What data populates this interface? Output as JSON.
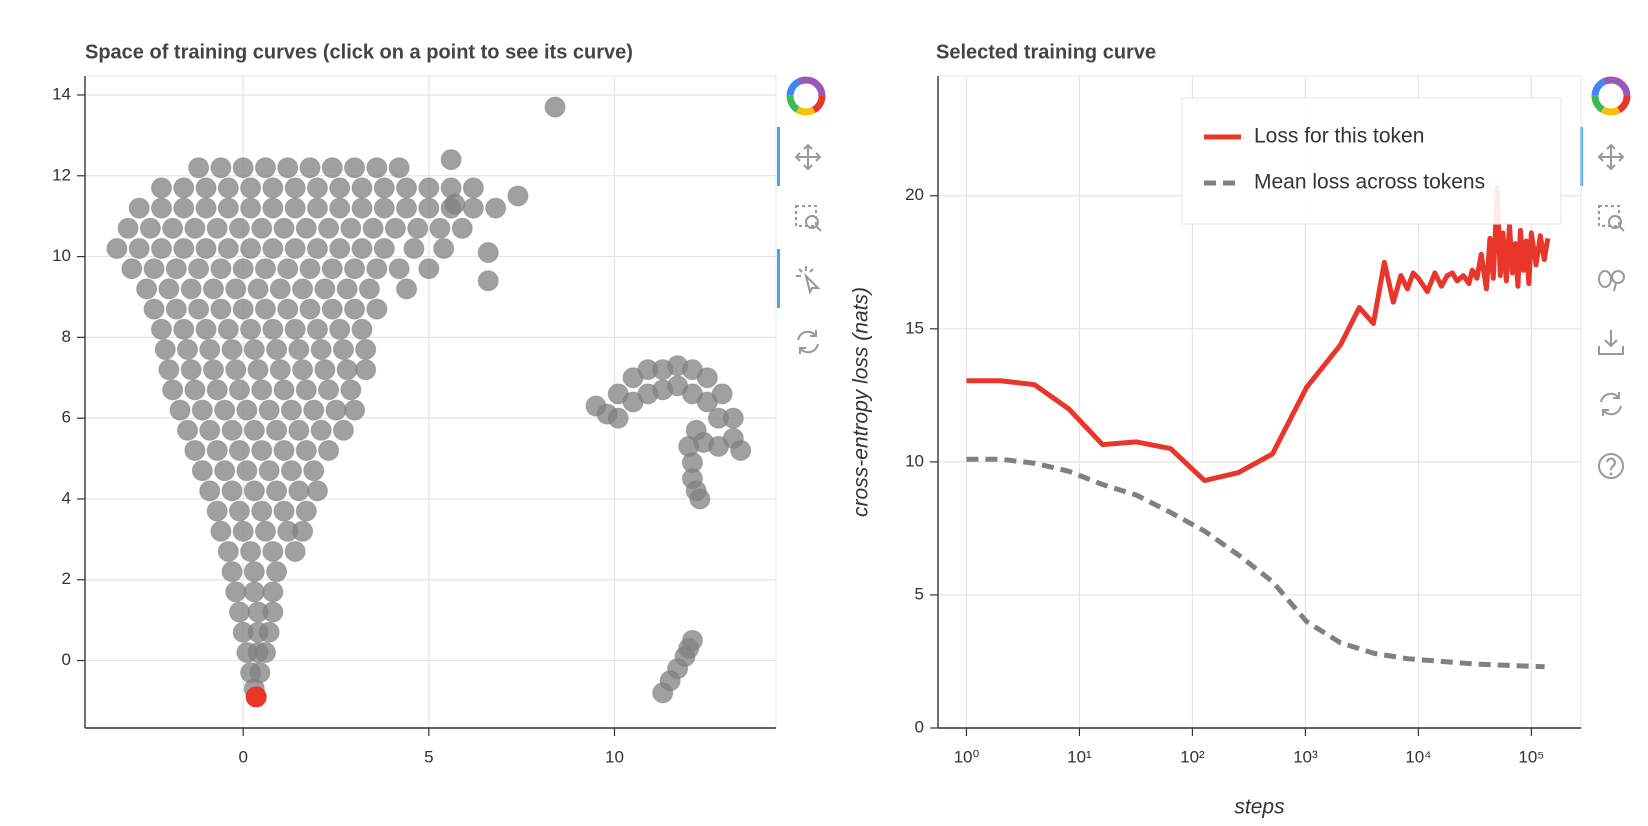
{
  "chart_data": [
    {
      "type": "scatter",
      "title": "Space of training curves (click on a point to see its curve)",
      "xlim": [
        -4.26,
        14.35
      ],
      "ylim": [
        -1.67,
        14.47
      ],
      "xticks": [
        0,
        5,
        10
      ],
      "yticks": [
        0,
        2,
        4,
        6,
        8,
        10,
        12,
        14
      ],
      "grid": true,
      "series": [
        {
          "color": "#808080",
          "x": [
            -1.2,
            -0.6,
            0,
            0.6,
            1.2,
            1.8,
            2.4,
            3.0,
            3.6,
            4.2,
            -2.2,
            -1.6,
            -1.0,
            -0.4,
            0.2,
            0.8,
            1.4,
            2.0,
            2.6,
            3.2,
            3.8,
            4.4,
            5.0,
            5.6,
            6.2,
            -2.8,
            -2.2,
            -1.6,
            -1.0,
            -0.4,
            0.2,
            0.8,
            1.4,
            2.0,
            2.6,
            3.2,
            3.8,
            4.4,
            5.0,
            5.6,
            6.2,
            6.8,
            -3.1,
            -2.5,
            -1.9,
            -1.3,
            -0.7,
            -0.1,
            0.5,
            1.1,
            1.7,
            2.3,
            2.9,
            3.5,
            4.1,
            4.7,
            5.3,
            5.9,
            -3.4,
            -2.8,
            -2.2,
            -1.6,
            -1.0,
            -0.4,
            0.2,
            0.8,
            1.4,
            2.0,
            2.6,
            3.2,
            3.8,
            4.6,
            5.4,
            -3.0,
            -2.4,
            -1.8,
            -1.2,
            -0.6,
            0,
            0.6,
            1.2,
            1.8,
            2.4,
            3.0,
            3.6,
            4.2,
            5.0,
            -2.6,
            -2.0,
            -1.4,
            -0.8,
            -0.2,
            0.4,
            1.0,
            1.6,
            2.2,
            2.8,
            3.4,
            4.4,
            -2.4,
            -1.8,
            -1.2,
            -0.6,
            0,
            0.6,
            1.2,
            1.8,
            2.4,
            3.0,
            3.6,
            -2.2,
            -1.6,
            -1.0,
            -0.4,
            0.2,
            0.8,
            1.4,
            2.0,
            2.6,
            3.2,
            -2.1,
            -1.5,
            -0.9,
            -0.3,
            0.3,
            0.9,
            1.5,
            2.1,
            2.7,
            3.3,
            -2.0,
            -1.4,
            -0.8,
            -0.2,
            0.4,
            1.0,
            1.6,
            2.2,
            2.8,
            3.3,
            -1.9,
            -1.3,
            -0.7,
            -0.1,
            0.5,
            1.1,
            1.7,
            2.3,
            2.9,
            -1.7,
            -1.1,
            -0.5,
            0.1,
            0.7,
            1.3,
            1.9,
            2.5,
            3.0,
            -1.5,
            -0.9,
            -0.3,
            0.3,
            0.9,
            1.5,
            2.1,
            2.7,
            -1.3,
            -0.7,
            -0.1,
            0.5,
            1.1,
            1.7,
            2.3,
            -1.1,
            -0.5,
            0.1,
            0.7,
            1.3,
            1.9,
            -0.9,
            -0.3,
            0.3,
            0.9,
            1.5,
            2.0,
            -0.7,
            -0.1,
            0.5,
            1.1,
            1.7,
            -0.6,
            0,
            0.6,
            1.2,
            1.6,
            -0.4,
            0.2,
            0.8,
            1.4,
            -0.3,
            0.3,
            0.9,
            -0.2,
            0.3,
            0.8,
            -0.1,
            0.4,
            0.8,
            0,
            0.4,
            0.7,
            0.1,
            0.4,
            0.6,
            0.2,
            0.45,
            0.3,
            8.4,
            7.4,
            5.6,
            5.7,
            6.6,
            6.6,
            9.5,
            9.8,
            10.1,
            10.1,
            10.5,
            10.5,
            10.9,
            10.9,
            11.3,
            11.3,
            11.7,
            11.7,
            12.1,
            12.1,
            12.5,
            12.5,
            12.9,
            12.8,
            13.2,
            13.2,
            13.4,
            12.8,
            12.4,
            12.0,
            12.2,
            12.1,
            12.1,
            12.2,
            12.3,
            11.3,
            11.5,
            11.7,
            11.9,
            12.0,
            12.1
          ],
          "values": [
            12.2,
            12.2,
            12.2,
            12.2,
            12.2,
            12.2,
            12.2,
            12.2,
            12.2,
            12.2,
            11.7,
            11.7,
            11.7,
            11.7,
            11.7,
            11.7,
            11.7,
            11.7,
            11.7,
            11.7,
            11.7,
            11.7,
            11.7,
            11.7,
            11.7,
            11.2,
            11.2,
            11.2,
            11.2,
            11.2,
            11.2,
            11.2,
            11.2,
            11.2,
            11.2,
            11.2,
            11.2,
            11.2,
            11.2,
            11.2,
            11.2,
            11.2,
            10.7,
            10.7,
            10.7,
            10.7,
            10.7,
            10.7,
            10.7,
            10.7,
            10.7,
            10.7,
            10.7,
            10.7,
            10.7,
            10.7,
            10.7,
            10.7,
            10.2,
            10.2,
            10.2,
            10.2,
            10.2,
            10.2,
            10.2,
            10.2,
            10.2,
            10.2,
            10.2,
            10.2,
            10.2,
            10.2,
            10.2,
            9.7,
            9.7,
            9.7,
            9.7,
            9.7,
            9.7,
            9.7,
            9.7,
            9.7,
            9.7,
            9.7,
            9.7,
            9.7,
            9.7,
            9.2,
            9.2,
            9.2,
            9.2,
            9.2,
            9.2,
            9.2,
            9.2,
            9.2,
            9.2,
            9.2,
            9.2,
            8.7,
            8.7,
            8.7,
            8.7,
            8.7,
            8.7,
            8.7,
            8.7,
            8.7,
            8.7,
            8.7,
            8.2,
            8.2,
            8.2,
            8.2,
            8.2,
            8.2,
            8.2,
            8.2,
            8.2,
            8.2,
            7.7,
            7.7,
            7.7,
            7.7,
            7.7,
            7.7,
            7.7,
            7.7,
            7.7,
            7.7,
            7.2,
            7.2,
            7.2,
            7.2,
            7.2,
            7.2,
            7.2,
            7.2,
            7.2,
            7.2,
            6.7,
            6.7,
            6.7,
            6.7,
            6.7,
            6.7,
            6.7,
            6.7,
            6.7,
            6.2,
            6.2,
            6.2,
            6.2,
            6.2,
            6.2,
            6.2,
            6.2,
            6.2,
            5.7,
            5.7,
            5.7,
            5.7,
            5.7,
            5.7,
            5.7,
            5.7,
            5.2,
            5.2,
            5.2,
            5.2,
            5.2,
            5.2,
            5.2,
            4.7,
            4.7,
            4.7,
            4.7,
            4.7,
            4.7,
            4.2,
            4.2,
            4.2,
            4.2,
            4.2,
            4.2,
            3.7,
            3.7,
            3.7,
            3.7,
            3.7,
            3.2,
            3.2,
            3.2,
            3.2,
            3.2,
            2.7,
            2.7,
            2.7,
            2.7,
            2.2,
            2.2,
            2.2,
            1.7,
            1.7,
            1.7,
            1.2,
            1.2,
            1.2,
            0.7,
            0.7,
            0.7,
            0.2,
            0.2,
            0.2,
            -0.3,
            -0.3,
            -0.7,
            13.7,
            11.5,
            12.4,
            11.3,
            10.1,
            9.4,
            6.3,
            6.1,
            6.6,
            6.0,
            7.0,
            6.4,
            7.2,
            6.6,
            7.2,
            6.7,
            7.3,
            6.8,
            7.2,
            6.6,
            7.0,
            6.4,
            6.6,
            6.0,
            6.0,
            5.5,
            5.2,
            5.3,
            5.4,
            5.3,
            5.7,
            4.9,
            4.5,
            4.2,
            4.0,
            -0.8,
            -0.5,
            -0.2,
            0.1,
            0.3,
            0.5
          ]
        },
        {
          "color": "#e8362a",
          "x": [
            0.35
          ],
          "values": [
            -0.9
          ]
        }
      ]
    },
    {
      "type": "line",
      "title": "Selected training curve",
      "x_label": "steps",
      "y_label": "cross-entropy loss (nats)",
      "xscale": "log",
      "xlim": [
        0.56,
        275000
      ],
      "ylim": [
        0,
        24.5
      ],
      "xticks": [
        {
          "value": 1,
          "label": "10⁰"
        },
        {
          "value": 10,
          "label": "10¹"
        },
        {
          "value": 100,
          "label": "10²"
        },
        {
          "value": 1000,
          "label": "10³"
        },
        {
          "value": 10000,
          "label": "10⁴"
        },
        {
          "value": 100000,
          "label": "10⁵"
        }
      ],
      "yticks": [
        0,
        5,
        10,
        15,
        20
      ],
      "grid": true,
      "legend": "top-right",
      "series": [
        {
          "name": "Loss for this token",
          "color": "#e8362a",
          "dash": false,
          "x": [
            1,
            2,
            4,
            8,
            16,
            32,
            64,
            128,
            256,
            512,
            1024,
            2048,
            3000,
            4000,
            5000,
            6000,
            7000,
            8000,
            9000,
            10000,
            12000,
            14000,
            16000,
            18000,
            20000,
            22000,
            25000,
            28000,
            30000,
            33000,
            36000,
            40000,
            43000,
            46000,
            50000,
            53000,
            56000,
            60000,
            64000,
            68000,
            72000,
            76000,
            80000,
            85000,
            90000,
            95000,
            100000,
            110000,
            120000,
            130000,
            140000
          ],
          "values": [
            13.05,
            13.05,
            12.9,
            12.0,
            10.65,
            10.75,
            10.5,
            9.3,
            9.6,
            10.3,
            12.8,
            14.4,
            15.8,
            15.2,
            17.5,
            16.0,
            17.0,
            16.5,
            17.1,
            16.9,
            16.4,
            17.1,
            16.6,
            17.0,
            17.1,
            16.8,
            17.0,
            16.7,
            17.2,
            16.9,
            17.8,
            16.5,
            18.4,
            16.9,
            20.3,
            17.0,
            18.6,
            16.8,
            18.9,
            17.1,
            18.2,
            16.6,
            18.7,
            17.2,
            18.3,
            16.7,
            18.6,
            17.4,
            18.5,
            17.6,
            18.4
          ]
        },
        {
          "name": "Mean loss across tokens",
          "color": "#808080",
          "dash": true,
          "x": [
            1,
            2,
            4,
            8,
            16,
            32,
            64,
            128,
            256,
            512,
            1024,
            2048,
            4096,
            8192,
            16384,
            32768,
            65536,
            131072
          ],
          "values": [
            10.1,
            10.1,
            9.95,
            9.65,
            9.15,
            8.75,
            8.1,
            7.4,
            6.5,
            5.5,
            4.0,
            3.2,
            2.8,
            2.6,
            2.5,
            2.4,
            2.35,
            2.3
          ]
        }
      ]
    }
  ]
}
